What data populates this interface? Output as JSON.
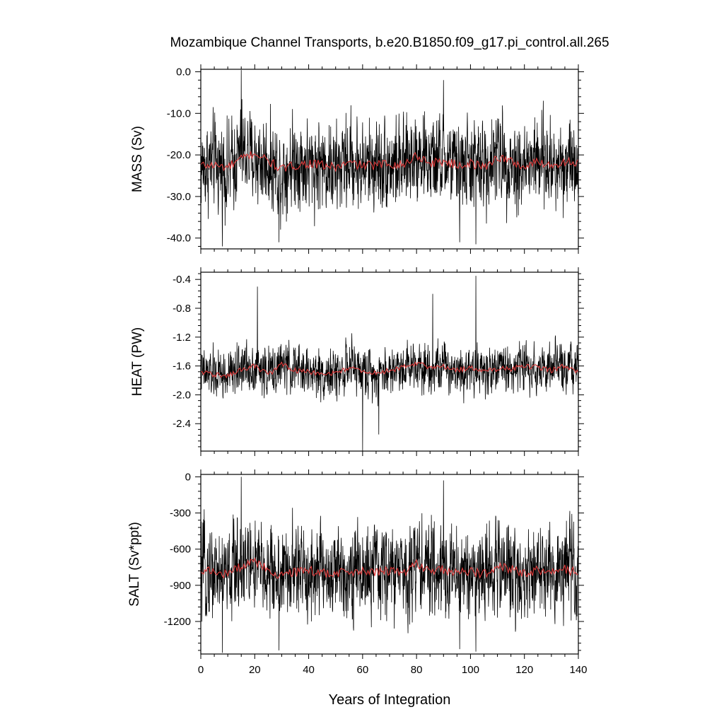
{
  "figure": {
    "title": "Mozambique Channel Transports, b.e20.B1850.f09_g17.pi_control.all.265",
    "xlabel": "Years of Integration",
    "colors": {
      "raw": "#000000",
      "smooth": "#e03a3a"
    }
  },
  "chart_data": [
    {
      "type": "line",
      "ylabel": "MASS (Sv)",
      "xlim": [
        0,
        140
      ],
      "ylim": [
        -42.6,
        0.6
      ],
      "yticks": [
        "0.0",
        "-10.0",
        "-20.0",
        "-30.0",
        "-40.0"
      ],
      "xticks": [
        "0",
        "20",
        "40",
        "60",
        "80",
        "100",
        "120",
        "140"
      ],
      "series": [
        {
          "x": [
            0,
            5,
            10,
            15,
            20,
            25,
            30,
            35,
            40,
            45,
            50,
            55,
            60,
            65,
            70,
            75,
            80,
            85,
            90,
            95,
            100,
            105,
            110,
            115,
            120,
            125,
            130,
            135,
            140
          ],
          "values": [
            -23,
            -22,
            -24,
            -19,
            -21,
            -22,
            -24,
            -21,
            -23,
            -22,
            -24,
            -21,
            -23,
            -22,
            -22,
            -23,
            -19,
            -22,
            -21,
            -23,
            -22,
            -23,
            -20,
            -22,
            -23,
            -21,
            -23,
            -21,
            -22
          ]
        },
        {
          "x": [
            0,
            5,
            10,
            15,
            20,
            25,
            30,
            35,
            40,
            45,
            50,
            55,
            60,
            65,
            70,
            75,
            80,
            85,
            90,
            95,
            100,
            105,
            110,
            115,
            120,
            125,
            130,
            135,
            140
          ],
          "values": [
            -22.5,
            -22.5,
            -23,
            -21,
            -19.5,
            -21.5,
            -23.5,
            -22.5,
            -22,
            -22.5,
            -23,
            -22,
            -22.5,
            -22.5,
            -22,
            -22.5,
            -20,
            -22,
            -21.5,
            -22.5,
            -22,
            -23,
            -20.5,
            -21.5,
            -23,
            -21.5,
            -22.5,
            -21.5,
            -22
          ]
        }
      ]
    },
    {
      "type": "line",
      "ylabel": "HEAT (PW)",
      "xlim": [
        0,
        140
      ],
      "ylim": [
        -2.78,
        -0.3
      ],
      "yticks": [
        "-0.4",
        "-0.8",
        "-1.2",
        "-1.6",
        "-2.0",
        "-2.4"
      ],
      "xticks": [
        "0",
        "20",
        "40",
        "60",
        "80",
        "100",
        "120",
        "140"
      ],
      "series": [
        {
          "x": [
            0,
            5,
            10,
            15,
            20,
            25,
            30,
            35,
            40,
            45,
            50,
            55,
            60,
            65,
            70,
            75,
            80,
            85,
            90,
            95,
            100,
            105,
            110,
            115,
            120,
            125,
            130,
            135,
            140
          ],
          "values": [
            -1.7,
            -1.72,
            -1.75,
            -1.6,
            -1.62,
            -1.7,
            -1.6,
            -1.65,
            -1.68,
            -1.7,
            -1.72,
            -1.6,
            -1.68,
            -1.7,
            -1.66,
            -1.6,
            -1.55,
            -1.62,
            -1.6,
            -1.65,
            -1.62,
            -1.68,
            -1.62,
            -1.65,
            -1.6,
            -1.62,
            -1.65,
            -1.6,
            -1.7
          ]
        },
        {
          "x": [
            0,
            5,
            10,
            15,
            20,
            25,
            30,
            35,
            40,
            45,
            50,
            55,
            60,
            65,
            70,
            75,
            80,
            85,
            90,
            95,
            100,
            105,
            110,
            115,
            120,
            125,
            130,
            135,
            140
          ],
          "values": [
            -1.68,
            -1.72,
            -1.74,
            -1.65,
            -1.6,
            -1.72,
            -1.58,
            -1.66,
            -1.68,
            -1.72,
            -1.7,
            -1.62,
            -1.68,
            -1.7,
            -1.66,
            -1.62,
            -1.56,
            -1.62,
            -1.6,
            -1.66,
            -1.62,
            -1.68,
            -1.64,
            -1.64,
            -1.6,
            -1.62,
            -1.66,
            -1.6,
            -1.7
          ]
        }
      ]
    },
    {
      "type": "line",
      "ylabel": "SALT (Sv*ppt)",
      "xlim": [
        0,
        140
      ],
      "ylim": [
        -1470,
        20
      ],
      "yticks": [
        "0",
        "-300",
        "-600",
        "-900",
        "-1200"
      ],
      "xticks": [
        "0",
        "20",
        "40",
        "60",
        "80",
        "100",
        "120",
        "140"
      ],
      "series": [
        {
          "x": [
            0,
            5,
            10,
            15,
            20,
            25,
            30,
            35,
            40,
            45,
            50,
            55,
            60,
            65,
            70,
            75,
            80,
            85,
            90,
            95,
            100,
            105,
            110,
            115,
            120,
            125,
            130,
            135,
            140
          ],
          "values": [
            -790,
            -780,
            -830,
            -680,
            -750,
            -790,
            -830,
            -770,
            -800,
            -780,
            -830,
            -760,
            -800,
            -790,
            -780,
            -800,
            -700,
            -790,
            -760,
            -810,
            -790,
            -810,
            -730,
            -780,
            -810,
            -760,
            -810,
            -760,
            -790
          ]
        },
        {
          "x": [
            0,
            5,
            10,
            15,
            20,
            25,
            30,
            35,
            40,
            45,
            50,
            55,
            60,
            65,
            70,
            75,
            80,
            85,
            90,
            95,
            100,
            105,
            110,
            115,
            120,
            125,
            130,
            135,
            140
          ],
          "values": [
            -790,
            -785,
            -810,
            -740,
            -700,
            -770,
            -830,
            -790,
            -780,
            -790,
            -810,
            -780,
            -790,
            -790,
            -780,
            -795,
            -720,
            -780,
            -770,
            -800,
            -785,
            -810,
            -740,
            -760,
            -810,
            -770,
            -800,
            -770,
            -790
          ]
        }
      ]
    }
  ]
}
